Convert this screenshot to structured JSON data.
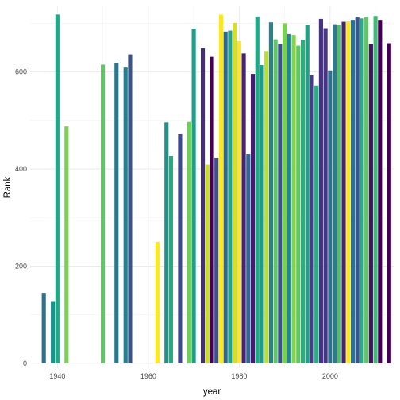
{
  "chart_data": {
    "type": "bar",
    "xlabel": "year",
    "ylabel": "Rank",
    "xlim": [
      1934,
      2014
    ],
    "ylim": [
      -10,
      735
    ],
    "x_ticks": [
      1940,
      1960,
      1980,
      2000
    ],
    "y_ticks": [
      0,
      200,
      400,
      600
    ],
    "grid": true,
    "legend": "none",
    "bars": [
      {
        "x": 1937,
        "value": 145,
        "color": "#2c728e"
      },
      {
        "x": 1939,
        "value": 128,
        "color": "#21908d"
      },
      {
        "x": 1940,
        "value": 718,
        "color": "#22a884"
      },
      {
        "x": 1942,
        "value": 488,
        "color": "#7ad151"
      },
      {
        "x": 1950,
        "value": 615,
        "color": "#5ec962"
      },
      {
        "x": 1953,
        "value": 619,
        "color": "#2a788e"
      },
      {
        "x": 1955,
        "value": 609,
        "color": "#27808e"
      },
      {
        "x": 1956,
        "value": 636,
        "color": "#3b528b"
      },
      {
        "x": 1962,
        "value": 250,
        "color": "#fde725"
      },
      {
        "x": 1964,
        "value": 496,
        "color": "#20928c"
      },
      {
        "x": 1965,
        "value": 427,
        "color": "#25ab82"
      },
      {
        "x": 1967,
        "value": 472,
        "color": "#3e4989"
      },
      {
        "x": 1969,
        "value": 497,
        "color": "#6ece58"
      },
      {
        "x": 1970,
        "value": 689,
        "color": "#1f9e89"
      },
      {
        "x": 1972,
        "value": 649,
        "color": "#472d7b"
      },
      {
        "x": 1973,
        "value": 409,
        "color": "#c8e020"
      },
      {
        "x": 1974,
        "value": 631,
        "color": "#440154"
      },
      {
        "x": 1975,
        "value": 423,
        "color": "#3b528b"
      },
      {
        "x": 1976,
        "value": 718,
        "color": "#fde725"
      },
      {
        "x": 1977,
        "value": 683,
        "color": "#31688e"
      },
      {
        "x": 1978,
        "value": 685,
        "color": "#20a386"
      },
      {
        "x": 1979,
        "value": 701,
        "color": "#d5e21a"
      },
      {
        "x": 1980,
        "value": 663,
        "color": "#fde725"
      },
      {
        "x": 1981,
        "value": 638,
        "color": "#482173"
      },
      {
        "x": 1982,
        "value": 431,
        "color": "#31688e"
      },
      {
        "x": 1983,
        "value": 596,
        "color": "#481a6c"
      },
      {
        "x": 1984,
        "value": 714,
        "color": "#22a884"
      },
      {
        "x": 1985,
        "value": 614,
        "color": "#1f9a8a"
      },
      {
        "x": 1986,
        "value": 643,
        "color": "#bddf26"
      },
      {
        "x": 1987,
        "value": 702,
        "color": "#26828e"
      },
      {
        "x": 1988,
        "value": 667,
        "color": "#5ec962"
      },
      {
        "x": 1989,
        "value": 657,
        "color": "#3b528b"
      },
      {
        "x": 1990,
        "value": 700,
        "color": "#7ad151"
      },
      {
        "x": 1991,
        "value": 678,
        "color": "#25848e"
      },
      {
        "x": 1992,
        "value": 676,
        "color": "#84d44b"
      },
      {
        "x": 1993,
        "value": 654,
        "color": "#5ec962"
      },
      {
        "x": 1994,
        "value": 666,
        "color": "#2ab07f"
      },
      {
        "x": 1995,
        "value": 697,
        "color": "#1fa187"
      },
      {
        "x": 1996,
        "value": 593,
        "color": "#433e85"
      },
      {
        "x": 1997,
        "value": 572,
        "color": "#29af7f"
      },
      {
        "x": 1998,
        "value": 709,
        "color": "#46337e"
      },
      {
        "x": 1999,
        "value": 690,
        "color": "#453781"
      },
      {
        "x": 2000,
        "value": 603,
        "color": "#2d708e"
      },
      {
        "x": 2001,
        "value": 698,
        "color": "#287c8e"
      },
      {
        "x": 2002,
        "value": 696,
        "color": "#4ac16d"
      },
      {
        "x": 2003,
        "value": 703,
        "color": "#482475"
      },
      {
        "x": 2004,
        "value": 704,
        "color": "#fde725"
      },
      {
        "x": 2005,
        "value": 707,
        "color": "#2e6f8e"
      },
      {
        "x": 2006,
        "value": 712,
        "color": "#39568c"
      },
      {
        "x": 2007,
        "value": 710,
        "color": "#27ad81"
      },
      {
        "x": 2008,
        "value": 713,
        "color": "#5ec962"
      },
      {
        "x": 2009,
        "value": 657,
        "color": "#471063"
      },
      {
        "x": 2010,
        "value": 715,
        "color": "#3fbc73"
      },
      {
        "x": 2011,
        "value": 707,
        "color": "#440154"
      },
      {
        "x": 2013,
        "value": 659,
        "color": "#440154"
      }
    ]
  }
}
